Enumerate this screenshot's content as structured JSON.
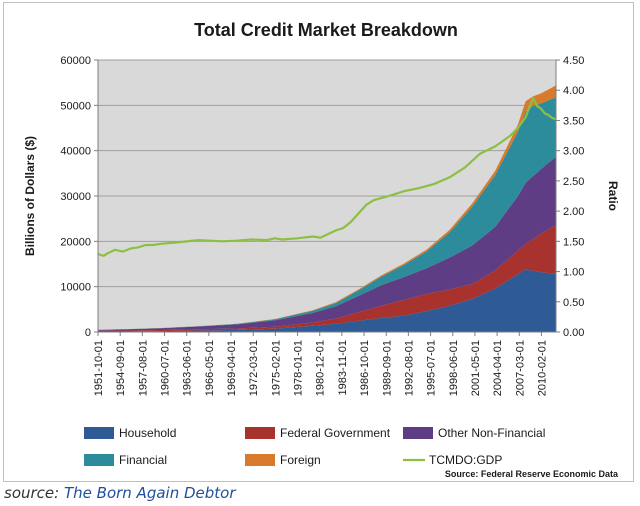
{
  "colors": {
    "household": "#2e5a96",
    "federal": "#a8322d",
    "other": "#5f3d85",
    "financial": "#2d8c9c",
    "foreign": "#d77a2b",
    "ratio": "#8cbf42",
    "plot_bg": "#d9d9d9",
    "grid": "#9e9e9e"
  },
  "chart_data": {
    "type": "area",
    "title": "Total Credit Market Breakdown",
    "ylabel": "Billions of Dollars ($)",
    "y2label": "Ratio",
    "ylim": [
      0,
      60000
    ],
    "y2lim": [
      0,
      4.5
    ],
    "yticks": [
      "0",
      "10000",
      "20000",
      "30000",
      "40000",
      "50000",
      "60000"
    ],
    "y2ticks": [
      "0.00",
      "0.50",
      "1.00",
      "1.50",
      "2.00",
      "2.50",
      "3.00",
      "3.50",
      "4.00",
      "4.50"
    ],
    "xlim": [
      1951.75,
      2012.0
    ],
    "x_tick_labels": [
      "1951-10-01",
      "1954-09-01",
      "1957-08-01",
      "1960-07-01",
      "1963-06-01",
      "1966-05-01",
      "1969-04-01",
      "1972-03-01",
      "1975-02-01",
      "1978-01-01",
      "1980-12-01",
      "1983-11-01",
      "1986-10-01",
      "1989-09-01",
      "1992-08-01",
      "1995-07-01",
      "1998-06-01",
      "2001-05-01",
      "2004-04-01",
      "2007-03-01",
      "2010-02-01"
    ],
    "x_tick_values": [
      1951.75,
      1954.67,
      1957.58,
      1960.5,
      1963.42,
      1966.33,
      1969.25,
      1972.17,
      1975.08,
      1978.0,
      1980.92,
      1983.83,
      1986.75,
      1989.67,
      1992.58,
      1995.5,
      1998.42,
      2001.33,
      2004.25,
      2007.17,
      2010.08
    ],
    "x": [
      1951.75,
      1955,
      1960,
      1965,
      1970,
      1975,
      1980,
      1983,
      1986,
      1989,
      1992,
      1995,
      1998,
      2001,
      2004,
      2007,
      2008,
      2009,
      2010,
      2011,
      2012.0
    ],
    "series": [
      {
        "name": "Household",
        "key": "household",
        "values": [
          50,
          100,
          200,
          330,
          460,
          730,
          1380,
          1800,
          2450,
          3100,
          3600,
          4600,
          5800,
          7300,
          9600,
          12800,
          13800,
          13500,
          13200,
          13000,
          12800
        ]
      },
      {
        "name": "Federal Government",
        "key": "federal",
        "values": [
          220,
          230,
          240,
          270,
          300,
          440,
          720,
          1150,
          1900,
          2700,
          3500,
          3800,
          3600,
          3300,
          4000,
          5200,
          5600,
          7000,
          8500,
          9700,
          10800
        ]
      },
      {
        "name": "Other Non-Financial",
        "key": "other",
        "values": [
          200,
          240,
          380,
          600,
          920,
          1400,
          2100,
          2700,
          3600,
          4500,
          5000,
          5700,
          7000,
          8500,
          9600,
          12000,
          13500,
          13900,
          14200,
          14600,
          15000
        ]
      },
      {
        "name": "Financial",
        "key": "financial",
        "values": [
          10,
          20,
          40,
          60,
          100,
          220,
          450,
          700,
          1200,
          1900,
          2700,
          3700,
          5600,
          8600,
          11400,
          14200,
          15800,
          15500,
          14500,
          13800,
          13200
        ]
      },
      {
        "name": "Foreign",
        "key": "foreign",
        "values": [
          10,
          20,
          30,
          40,
          50,
          70,
          150,
          200,
          230,
          260,
          300,
          400,
          520,
          700,
          950,
          1600,
          2200,
          2100,
          2200,
          2400,
          2600
        ]
      }
    ],
    "ratio_series": {
      "name": "TCMDO:GDP",
      "x": [
        1951.75,
        1952.5,
        1953.0,
        1954.0,
        1955.0,
        1956.0,
        1957.0,
        1958.0,
        1959.0,
        1960.0,
        1962.0,
        1965.0,
        1968.0,
        1970.0,
        1972.0,
        1974.0,
        1975.0,
        1976.0,
        1978.0,
        1980.0,
        1981.0,
        1982.0,
        1983.0,
        1984.0,
        1985.0,
        1986.0,
        1987.0,
        1988.0,
        1990.0,
        1992.0,
        1994.0,
        1996.0,
        1998.0,
        2000.0,
        2002.0,
        2004.0,
        2006.0,
        2007.0,
        2008.0,
        2008.5,
        2009.0,
        2009.5,
        2010.0,
        2010.5,
        2011.0,
        2011.5,
        2012.0
      ],
      "values": [
        1.29,
        1.26,
        1.3,
        1.36,
        1.33,
        1.38,
        1.4,
        1.44,
        1.44,
        1.46,
        1.48,
        1.52,
        1.5,
        1.51,
        1.53,
        1.52,
        1.55,
        1.53,
        1.55,
        1.58,
        1.56,
        1.62,
        1.68,
        1.72,
        1.82,
        1.96,
        2.1,
        2.18,
        2.25,
        2.33,
        2.38,
        2.45,
        2.56,
        2.72,
        2.95,
        3.07,
        3.25,
        3.38,
        3.55,
        3.72,
        3.87,
        3.74,
        3.7,
        3.62,
        3.59,
        3.54,
        3.52
      ]
    },
    "legend": {
      "placement": "bottom",
      "items": [
        "Household",
        "Federal Government",
        "Other Non-Financial",
        "Financial",
        "Foreign",
        "TCMDO:GDP"
      ]
    },
    "annotation": "Source: Federal Reserve Economic Data"
  },
  "caption": {
    "prefix": "source:",
    "name": "The Born Again Debtor"
  }
}
